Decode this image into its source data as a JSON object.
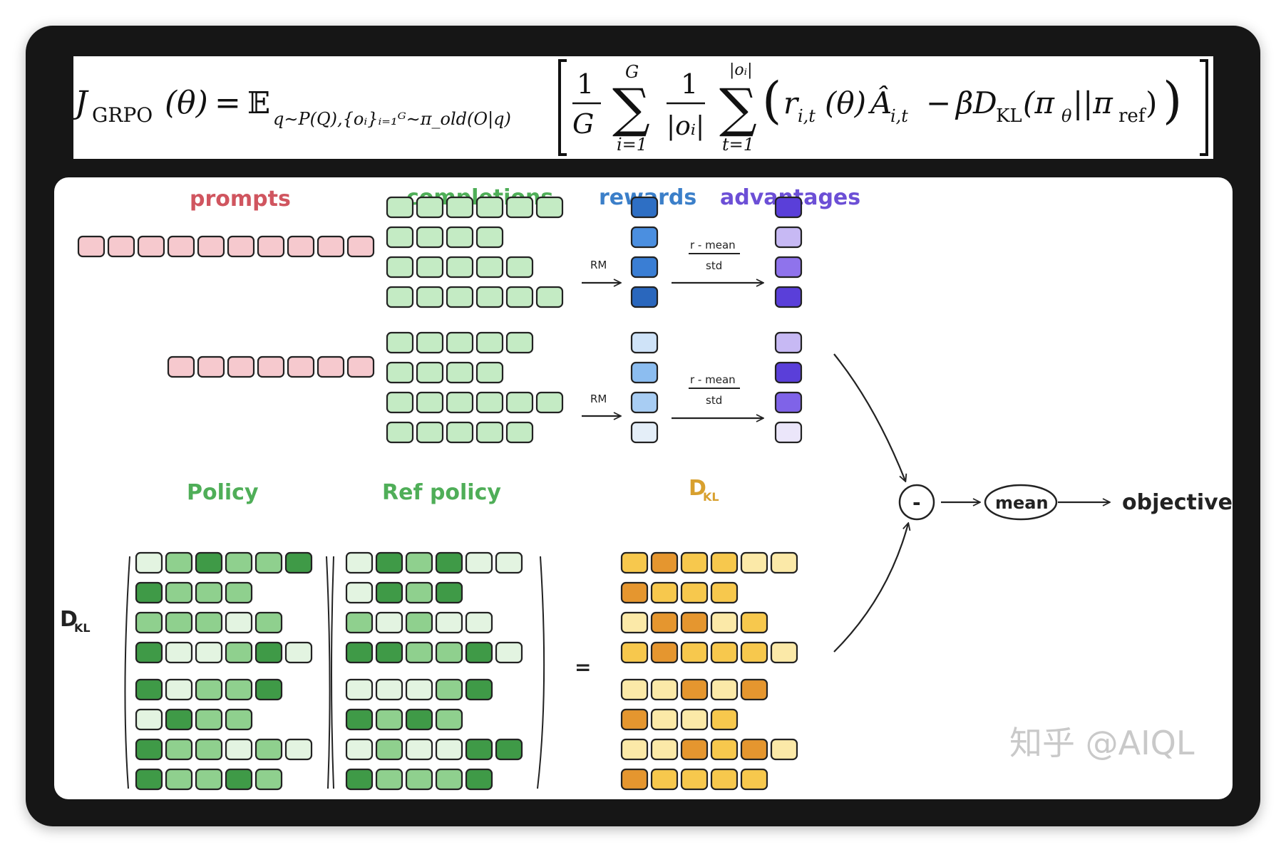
{
  "formula": {
    "lhs_J": "J",
    "lhs_sub": "GRPO",
    "lhs_arg": "(θ)",
    "equals": "=",
    "expect": "𝔼",
    "expect_sub": "q∼P(Q),{oᵢ}ᵢ₌₁ᴳ∼π_old(O|q)",
    "frac1_num": "1",
    "frac1_den": "G",
    "sum1_top": "G",
    "sum1_bottom": "i=1",
    "frac2_num": "1",
    "frac2_den": "|oᵢ|",
    "sum2_top": "|oᵢ|",
    "sum2_bottom": "t=1",
    "term": "r",
    "term_sub": "i,t",
    "term_arg": "(θ)",
    "adv": "Â",
    "adv_sub": "i,t",
    "minus": "−",
    "beta": "β",
    "dkl": "D",
    "dkl_sub": "KL",
    "dkl_arg": "(π",
    "pi_sub": "θ",
    "sep": "||π",
    "ref_sub": "ref",
    "close": ")"
  },
  "labels": {
    "prompts": "prompts",
    "completions": "completions",
    "rewards": "rewards",
    "advantages": "advantages",
    "rm": "RM",
    "norm_num": "r - mean",
    "norm_den": "std",
    "policy": "Policy",
    "ref_policy": "Ref policy",
    "dkl_title": "D",
    "dkl_title_sub": "KL",
    "dkl_side": "D",
    "dkl_side_sub": "KL",
    "equals": "=",
    "minus_node": "-",
    "mean_node": "mean",
    "objective": "objective",
    "watermark": "知乎 @AIQL"
  },
  "colors": {
    "prompt": "#f6c9ce",
    "completion": "#c4ebc4",
    "green_light": "#e3f4e1",
    "green_mid": "#8fd08e",
    "green_dark": "#3f9a47",
    "reward": [
      "#2e6fc4",
      "#4b8fe0",
      "#3a7ed4",
      "#2a67bd",
      "#cfe3f8",
      "#8cbdf0",
      "#a8cdf3",
      "#e4eef8"
    ],
    "advantage": [
      "#5a3fd9",
      "#c7b9f4",
      "#8f73ec",
      "#5a3fd9",
      "#c7b9f4",
      "#5a3fd9",
      "#7f63e8",
      "#ebe6fa"
    ],
    "orange_light": "#fbe9a8",
    "orange_mid": "#f7c84d",
    "orange_dark": "#e5962f",
    "stroke": "#222222",
    "label_prompts": "#d0555f",
    "label_completions": "#4fae58",
    "label_rewards": "#3b7fc9",
    "label_advantages": "#6c4fd6",
    "label_policy": "#4fae58",
    "label_dkl": "#d8a02e"
  },
  "diagram": {
    "prompt_groups": [
      10,
      7
    ],
    "completion_rows": [
      [
        6,
        4,
        5,
        6
      ],
      [
        5,
        4,
        6,
        5
      ]
    ],
    "policy_rows": [
      [
        "l",
        "m",
        "d",
        "m",
        "m",
        "d"
      ],
      [
        "d",
        "m",
        "m",
        "m"
      ],
      [
        "m",
        "m",
        "m",
        "l",
        "m"
      ],
      [
        "d",
        "l",
        "l",
        "m",
        "d",
        "l"
      ],
      [
        "d",
        "l",
        "m",
        "m",
        "d"
      ],
      [
        "l",
        "d",
        "m",
        "m"
      ],
      [
        "d",
        "m",
        "m",
        "l",
        "m",
        "l"
      ],
      [
        "d",
        "m",
        "m",
        "d",
        "m"
      ]
    ],
    "ref_rows": [
      [
        "l",
        "d",
        "m",
        "d",
        "l",
        "l"
      ],
      [
        "l",
        "d",
        "m",
        "d"
      ],
      [
        "m",
        "l",
        "m",
        "l",
        "l"
      ],
      [
        "d",
        "d",
        "m",
        "m",
        "d",
        "l"
      ],
      [
        "l",
        "l",
        "l",
        "m",
        "d"
      ],
      [
        "d",
        "m",
        "d",
        "m"
      ],
      [
        "l",
        "m",
        "l",
        "l",
        "d",
        "d"
      ],
      [
        "d",
        "m",
        "m",
        "m",
        "d"
      ]
    ],
    "dkl_rows": [
      [
        "m",
        "d",
        "m",
        "m",
        "l",
        "l"
      ],
      [
        "d",
        "m",
        "m",
        "m"
      ],
      [
        "l",
        "d",
        "d",
        "l",
        "m"
      ],
      [
        "m",
        "d",
        "m",
        "m",
        "m",
        "l"
      ],
      [
        "l",
        "l",
        "d",
        "l",
        "d"
      ],
      [
        "d",
        "l",
        "l",
        "m"
      ],
      [
        "l",
        "l",
        "d",
        "m",
        "d",
        "l"
      ],
      [
        "d",
        "m",
        "m",
        "m",
        "m"
      ]
    ]
  }
}
